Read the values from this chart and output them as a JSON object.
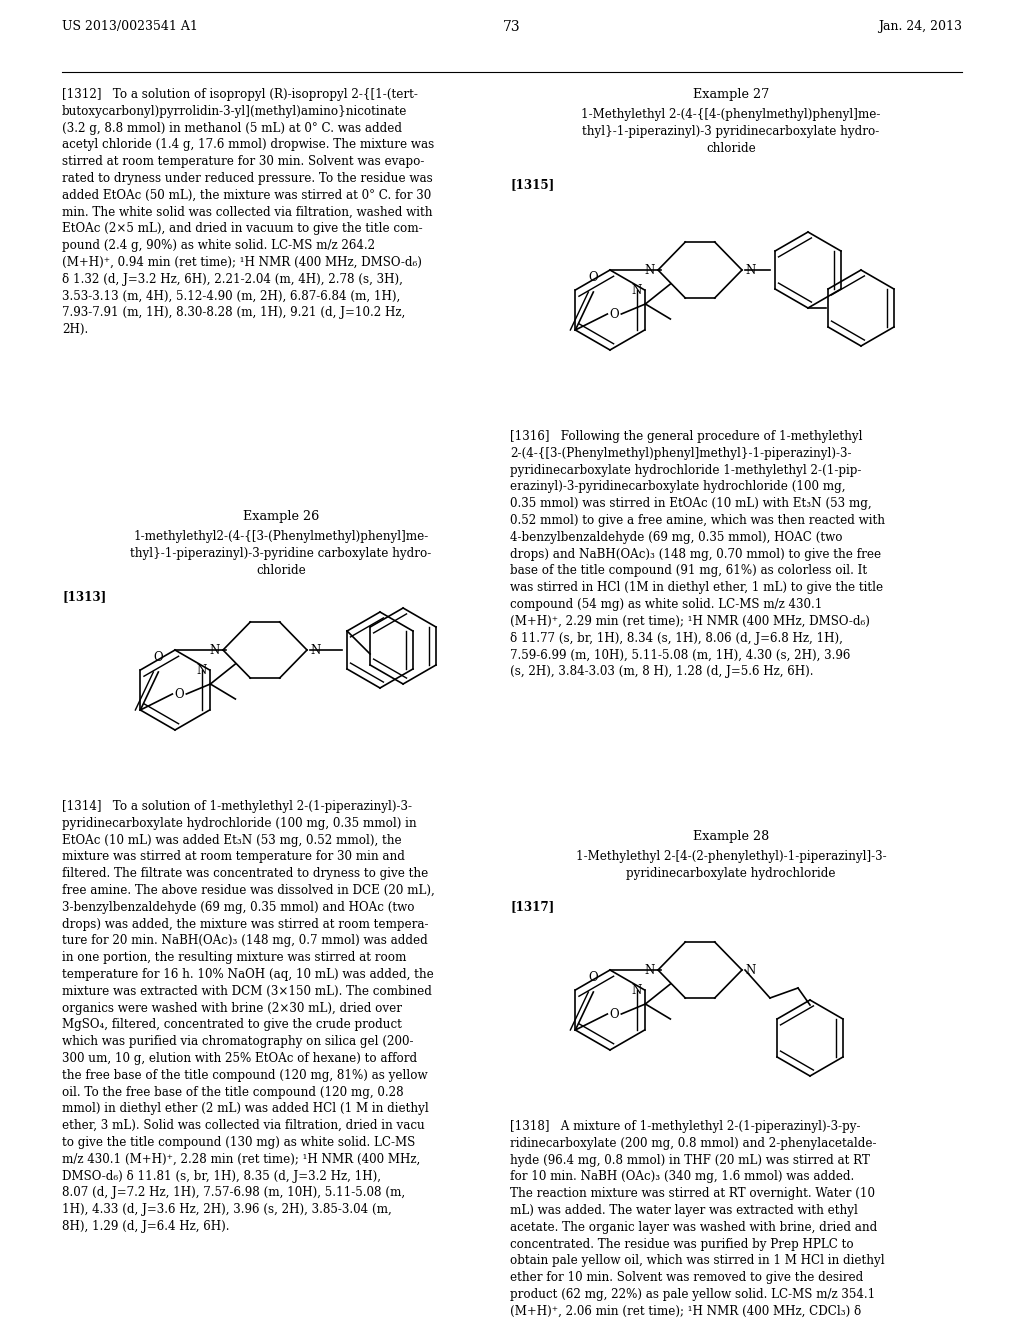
{
  "page_header_left": "US 2013/0023541 A1",
  "page_header_right": "Jan. 24, 2013",
  "page_number": "73",
  "background_color": "#ffffff",
  "p1312": "[1312]   To a solution of isopropyl (R)-isopropyl 2-{[1-(tert-\nbutoxycarbonyl)pyrrolidin-3-yl](methyl)amino}nicotinate\n(3.2 g, 8.8 mmol) in methanol (5 mL) at 0° C. was added\nacetyl chloride (1.4 g, 17.6 mmol) dropwise. The mixture was\nstirred at room temperature for 30 min. Solvent was evapo-\nrated to dryness under reduced pressure. To the residue was\nadded EtOAc (50 mL), the mixture was stirred at 0° C. for 30\nmin. The white solid was collected via filtration, washed with\nEtOAc (2×5 mL), and dried in vacuum to give the title com-\npound (2.4 g, 90%) as white solid. LC-MS m/z 264.2\n(M+H)⁺, 0.94 min (ret time); ¹H NMR (400 MHz, DMSO-d₆)\nδ 1.32 (d, J=3.2 Hz, 6H), 2.21-2.04 (m, 4H), 2.78 (s, 3H),\n3.53-3.13 (m, 4H), 5.12-4.90 (m, 2H), 6.87-6.84 (m, 1H),\n7.93-7.91 (m, 1H), 8.30-8.28 (m, 1H), 9.21 (d, J=10.2 Hz,\n2H).",
  "ex26_title": "Example 26",
  "ex26_sub": "1-methylethyl2-(4-{[3-(Phenylmethyl)phenyl]me-\nthyl}-1-piperazinyl)-3-pyridine carboxylate hydro-\nchloride",
  "tag1313": "[1313]",
  "p1314": "[1314]   To a solution of 1-methylethyl 2-(1-piperazinyl)-3-\npyridinecarboxylate hydrochloride (100 mg, 0.35 mmol) in\nEtOAc (10 mL) was added Et₃N (53 mg, 0.52 mmol), the\nmixture was stirred at room temperature for 30 min and\nfiltered. The filtrate was concentrated to dryness to give the\nfree amine. The above residue was dissolved in DCE (20 mL),\n3-benzylbenzaldehyde (69 mg, 0.35 mmol) and HOAc (two\ndrops) was added, the mixture was stirred at room tempera-\nture for 20 min. NaBH(OAc)₃ (148 mg, 0.7 mmol) was added\nin one portion, the resulting mixture was stirred at room\ntemperature for 16 h. 10% NaOH (aq, 10 mL) was added, the\nmixture was extracted with DCM (3×150 mL). The combined\norganics were washed with brine (2×30 mL), dried over\nMgSO₄, filtered, concentrated to give the crude product\nwhich was purified via chromatography on silica gel (200-\n300 um, 10 g, elution with 25% EtOAc of hexane) to afford\nthe free base of the title compound (120 mg, 81%) as yellow\noil. To the free base of the title compound (120 mg, 0.28\nmmol) in diethyl ether (2 mL) was added HCl (1 M in diethyl\nether, 3 mL). Solid was collected via filtration, dried in vacu\nto give the title compound (130 mg) as white solid. LC-MS\nm/z 430.1 (M+H)⁺, 2.28 min (ret time); ¹H NMR (400 MHz,\nDMSO-d₆) δ 11.81 (s, br, 1H), 8.35 (d, J=3.2 Hz, 1H),\n8.07 (d, J=7.2 Hz, 1H), 7.57-6.98 (m, 10H), 5.11-5.08 (m,\n1H), 4.33 (d, J=3.6 Hz, 2H), 3.96 (s, 2H), 3.85-3.04 (m,\n8H), 1.29 (d, J=6.4 Hz, 6H).",
  "ex27_title": "Example 27",
  "ex27_sub": "1-Methylethyl 2-(4-{[4-(phenylmethyl)phenyl]me-\nthyl}-1-piperazinyl)-3 pyridinecarboxylate hydro-\nchloride",
  "tag1315": "[1315]",
  "p1316": "[1316]   Following the general procedure of 1-methylethyl\n2-(4-{[3-(Phenylmethyl)phenyl]methyl}-1-piperazinyl)-3-\npyridinecarboxylate hydrochloride 1-methylethyl 2-(1-pip-\nerazinyl)-3-pyridinecarboxylate hydrochloride (100 mg,\n0.35 mmol) was stirred in EtOAc (10 mL) with Et₃N (53 mg,\n0.52 mmol) to give a free amine, which was then reacted with\n4-benzylbenzaldehyde (69 mg, 0.35 mmol), HOAC (two\ndrops) and NaBH(OAc)₃ (148 mg, 0.70 mmol) to give the free\nbase of the title compound (91 mg, 61%) as colorless oil. It\nwas stirred in HCl (1M in diethyl ether, 1 mL) to give the title\ncompound (54 mg) as white solid. LC-MS m/z 430.1\n(M+H)⁺, 2.29 min (ret time); ¹H NMR (400 MHz, DMSO-d₆)\nδ 11.77 (s, br, 1H), 8.34 (s, 1H), 8.06 (d, J=6.8 Hz, 1H),\n7.59-6.99 (m, 10H), 5.11-5.08 (m, 1H), 4.30 (s, 2H), 3.96\n(s, 2H), 3.84-3.03 (m, 8 H), 1.28 (d, J=5.6 Hz, 6H).",
  "ex28_title": "Example 28",
  "ex28_sub": "1-Methylethyl 2-[4-(2-phenylethyl)-1-piperazinyl]-3-\npyridinecarboxylate hydrochloride",
  "tag1317": "[1317]",
  "p1318": "[1318]   A mixture of 1-methylethyl 2-(1-piperazinyl)-3-py-\nridinecarboxylate (200 mg, 0.8 mmol) and 2-phenylacetalde-\nhyde (96.4 mg, 0.8 mmol) in THF (20 mL) was stirred at RT\nfor 10 min. NaBH (OAc)₃ (340 mg, 1.6 mmol) was added.\nThe reaction mixture was stirred at RT overnight. Water (10\nmL) was added. The water layer was extracted with ethyl\nacetate. The organic layer was washed with brine, dried and\nconcentrated. The residue was purified by Prep HPLC to\nobtain pale yellow oil, which was stirred in 1 M HCl in diethyl\nether for 10 min. Solvent was removed to give the desired\nproduct (62 mg, 22%) as pale yellow solid. LC-MS m/z 354.1\n(M+H)⁺, 2.06 min (ret time); ¹H NMR (400 MHz, CDCl₃) δ"
}
